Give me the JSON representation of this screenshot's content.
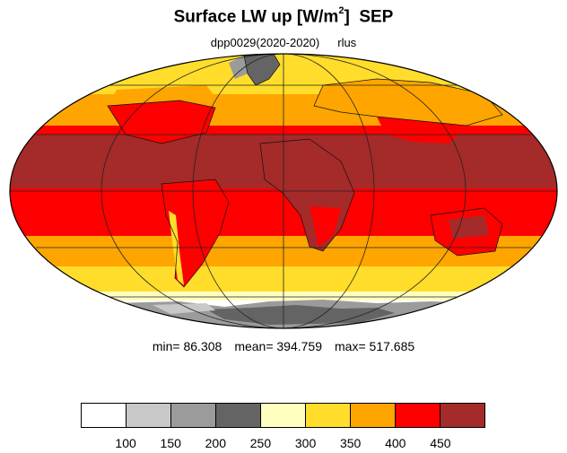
{
  "title": {
    "main": "Surface LW up [W/m",
    "sup": "2",
    "after": "]",
    "month": "SEP"
  },
  "subtitle": {
    "run": "dpp0029(2020-2020)",
    "variable": "rlus"
  },
  "stats": {
    "min": "min=  86.308",
    "mean": "mean= 394.759",
    "max": "max= 517.685"
  },
  "colorbar": {
    "colors": [
      "#ffffff",
      "#c8c8c8",
      "#9b9b9b",
      "#646464",
      "#ffffc0",
      "#ffdd2a",
      "#ffa500",
      "#ff0000",
      "#a52a2a"
    ],
    "labels": [
      "100",
      "150",
      "200",
      "250",
      "300",
      "350",
      "400",
      "450"
    ]
  },
  "map_data": {
    "projection": "mollweide",
    "bands": [
      {
        "latitudes": "north polar",
        "color": "#9b9b9b"
      },
      {
        "latitudes": "high north",
        "color": "#ffdd2a"
      },
      {
        "latitudes": "mid north",
        "color": "#ffa500"
      },
      {
        "latitudes": "subtropics north",
        "color": "#ff0000"
      },
      {
        "latitudes": "tropics",
        "color": "#a52a2a"
      },
      {
        "latitudes": "subtropics south",
        "color": "#ff0000"
      },
      {
        "latitudes": "mid south",
        "color": "#ffa500"
      },
      {
        "latitudes": "high south",
        "color": "#ffdd2a"
      },
      {
        "latitudes": "southern ocean edge",
        "color": "#ffffc0"
      },
      {
        "latitudes": "antarctica",
        "color": "#9b9b9b"
      }
    ]
  }
}
